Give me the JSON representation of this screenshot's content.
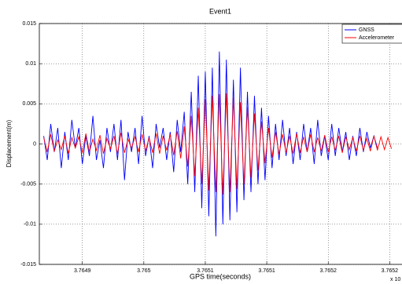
{
  "chart_data": {
    "type": "line",
    "title": "Event1",
    "x_label": "GPS time(seconds)",
    "y_label": "Displacement(m)",
    "x_multiplier": "x 10",
    "x": [
      3.764856,
      3.76486,
      3.764864,
      3.764868,
      3.764872,
      3.764876,
      3.76488,
      3.764884,
      3.764888,
      3.764892,
      3.764896,
      3.7649,
      3.764904,
      3.764908,
      3.764912,
      3.764916,
      3.76492,
      3.764924,
      3.764928,
      3.764932,
      3.764936,
      3.76494,
      3.764944,
      3.764948,
      3.764952,
      3.764956,
      3.76496,
      3.764964,
      3.764968,
      3.764972,
      3.764976,
      3.76498,
      3.764984,
      3.764988,
      3.764992,
      3.764996,
      3.765,
      3.765004,
      3.765008,
      3.765012,
      3.765016,
      3.76502,
      3.765024,
      3.765028,
      3.765032,
      3.765036,
      3.76504,
      3.765044,
      3.765048,
      3.765052,
      3.765056,
      3.76506,
      3.765064,
      3.765068,
      3.765072,
      3.765076,
      3.76508,
      3.765084,
      3.765088,
      3.765092,
      3.765096,
      3.7651,
      3.765104,
      3.765108,
      3.765112,
      3.765116,
      3.76512,
      3.765124,
      3.765128,
      3.765132,
      3.765136,
      3.76514,
      3.765144,
      3.765148,
      3.765152,
      3.765156,
      3.76516,
      3.765164,
      3.765168,
      3.765172,
      3.765176,
      3.76518,
      3.765184,
      3.765188,
      3.765192,
      3.765196,
      3.7652,
      3.765204,
      3.765208,
      3.765212,
      3.765216,
      3.76522,
      3.765224,
      3.765228,
      3.765232,
      3.765236,
      3.76524,
      3.765244,
      3.765248,
      3.765252
    ],
    "series": [
      {
        "name": "GNSS",
        "color": "#0000ff",
        "values": [
          0.001,
          -0.002,
          0.0025,
          -0.001,
          0.002,
          -0.003,
          0.0015,
          -0.002,
          0.003,
          -0.0005,
          0.002,
          -0.0025,
          0.001,
          -0.0015,
          0.0035,
          -0.002,
          0.0005,
          -0.003,
          0.002,
          -0.001,
          0.0025,
          -0.002,
          0.003,
          -0.0045,
          0.0015,
          -0.001,
          0.002,
          -0.0025,
          0.0035,
          -0.0015,
          0.001,
          -0.003,
          0.0025,
          -0.0005,
          0.002,
          -0.002,
          0.0015,
          -0.0035,
          0.003,
          -0.001,
          0.004,
          -0.005,
          0.0065,
          -0.006,
          0.0085,
          -0.008,
          0.009,
          -0.009,
          0.0095,
          -0.0115,
          0.0115,
          -0.01,
          0.0105,
          -0.0095,
          0.008,
          -0.0085,
          0.0095,
          -0.007,
          0.0065,
          -0.006,
          0.006,
          -0.005,
          0.0045,
          -0.0045,
          0.0035,
          -0.003,
          0.0025,
          -0.002,
          0.003,
          -0.0015,
          0.002,
          -0.0025,
          0.0015,
          -0.002,
          0.0025,
          -0.001,
          0.002,
          -0.0025,
          0.003,
          -0.0015,
          0.001,
          -0.002,
          0.0025,
          -0.0015,
          0.002,
          -0.001,
          0.0015,
          -0.002,
          0.001,
          -0.0015,
          0.002,
          -0.001,
          0.0015,
          -0.0005,
          0.001,
          -0.0005,
          null,
          null,
          null,
          null
        ]
      },
      {
        "name": "Accelerometer",
        "color": "#ff0000",
        "values": [
          0.0008,
          -0.001,
          0.0012,
          -0.0009,
          0.0005,
          -0.0007,
          0.001,
          -0.0012,
          0.0008,
          -0.0005,
          0.0009,
          -0.0011,
          0.0013,
          -0.001,
          0.0006,
          -0.0008,
          0.0011,
          -0.0012,
          0.0007,
          -0.0006,
          0.001,
          -0.0012,
          0.0014,
          -0.0011,
          0.0006,
          -0.0005,
          0.0009,
          -0.001,
          0.0012,
          -0.0009,
          0.0008,
          -0.0011,
          0.0013,
          -0.0012,
          0.001,
          -0.0008,
          0.0012,
          -0.0014,
          0.0016,
          -0.0018,
          0.0022,
          -0.0028,
          0.0035,
          -0.004,
          0.0045,
          -0.005,
          0.0055,
          -0.0058,
          0.006,
          -0.006,
          0.0062,
          -0.0063,
          0.0063,
          -0.006,
          0.0058,
          -0.0056,
          0.0052,
          -0.005,
          0.0046,
          -0.0042,
          0.0038,
          -0.0033,
          0.0028,
          -0.0024,
          0.002,
          -0.0017,
          0.0015,
          -0.0013,
          0.0012,
          -0.0011,
          0.001,
          -0.0012,
          0.0013,
          -0.0011,
          0.0009,
          -0.001,
          0.0012,
          -0.001,
          0.0008,
          -0.0009,
          0.0011,
          -0.001,
          0.0009,
          -0.0008,
          0.001,
          -0.0011,
          0.0009,
          -0.0007,
          0.0008,
          -0.0009,
          0.001,
          -0.0008,
          0.0007,
          -0.0009,
          0.001,
          -0.0008,
          0.0009,
          -0.0007,
          0.0008,
          -0.0006
        ]
      }
    ],
    "xlim": [
      3.764851,
      3.765264
    ],
    "xticks": [
      {
        "value": 3.7649,
        "label": "3.7649"
      },
      {
        "value": 3.76497,
        "label": "3.765"
      },
      {
        "value": 3.76504,
        "label": "3.7651"
      },
      {
        "value": 3.76511,
        "label": "3.7651"
      },
      {
        "value": 3.76518,
        "label": "3.7652"
      },
      {
        "value": 3.76525,
        "label": "3.7652"
      }
    ],
    "ylim": [
      -0.015,
      0.015
    ],
    "yticks": [
      -0.015,
      -0.01,
      -0.005,
      0,
      0.005,
      0.01,
      0.015
    ],
    "grid": true,
    "legend": "upper right"
  }
}
